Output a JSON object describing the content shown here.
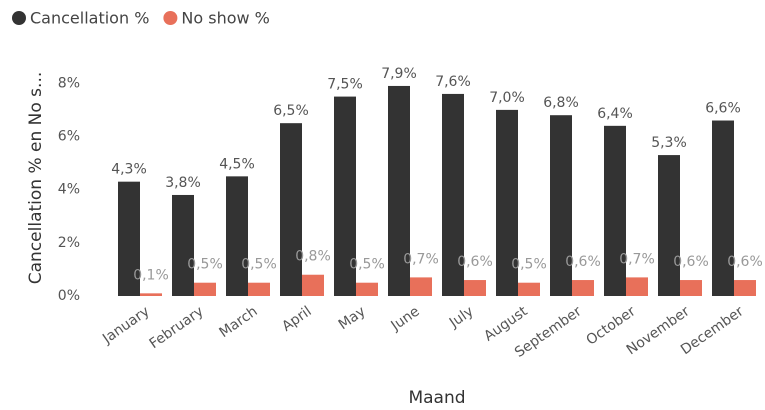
{
  "chart_data": {
    "type": "bar",
    "x_label": "Maand",
    "y_label": "Cancellation % en No s...",
    "categories": [
      "January",
      "February",
      "March",
      "April",
      "May",
      "June",
      "July",
      "August",
      "September",
      "October",
      "November",
      "December"
    ],
    "series": [
      {
        "name": "Cancellation %",
        "color": "#333333",
        "values": [
          4.3,
          3.8,
          4.5,
          6.5,
          7.5,
          7.9,
          7.6,
          7.0,
          6.8,
          6.4,
          5.3,
          6.6
        ],
        "value_labels": [
          "4,3%",
          "3,8%",
          "4,5%",
          "6,5%",
          "7,5%",
          "7,9%",
          "7,6%",
          "7,0%",
          "6,8%",
          "6,4%",
          "5,3%",
          "6,6%"
        ]
      },
      {
        "name": "No show %",
        "color": "#e8705a",
        "values": [
          0.1,
          0.5,
          0.5,
          0.8,
          0.5,
          0.7,
          0.6,
          0.5,
          0.6,
          0.7,
          0.6,
          0.6
        ],
        "value_labels": [
          "0,1%",
          "0,5%",
          "0,5%",
          "0,8%",
          "0,5%",
          "0,7%",
          "0,6%",
          "0,5%",
          "0,6%",
          "0,7%",
          "0,6%",
          "0,6%"
        ]
      }
    ],
    "ylim": [
      0,
      8.5
    ],
    "yticks": [
      {
        "value": 0,
        "label": "0%"
      },
      {
        "value": 2,
        "label": "2%"
      },
      {
        "value": 4,
        "label": "4%"
      },
      {
        "value": 6,
        "label": "6%"
      },
      {
        "value": 8,
        "label": "8%"
      }
    ],
    "legend": "top-left"
  }
}
